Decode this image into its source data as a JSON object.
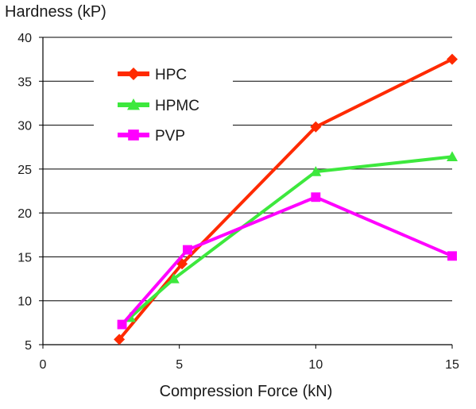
{
  "chart_data": {
    "type": "line",
    "ylabel": "Hardness (kP)",
    "xlabel": "Compression Force (kN)",
    "xlim": [
      0,
      15
    ],
    "ylim": [
      5,
      40
    ],
    "xticks": [
      0,
      5,
      10,
      15
    ],
    "yticks": [
      5,
      10,
      15,
      20,
      25,
      30,
      35,
      40
    ],
    "grid": "horizontal",
    "legend_position": "top-left",
    "series": [
      {
        "name": "HPC",
        "color": "#ff2a00",
        "marker": "diamond",
        "points": [
          [
            2.8,
            5.6
          ],
          [
            5.1,
            14.2
          ],
          [
            10.0,
            29.8
          ],
          [
            15.0,
            37.5
          ]
        ]
      },
      {
        "name": "HPMC",
        "color": "#3de83d",
        "marker": "triangle",
        "points": [
          [
            3.2,
            8.1
          ],
          [
            4.8,
            12.5
          ],
          [
            10.0,
            24.7
          ],
          [
            15.0,
            26.4
          ]
        ]
      },
      {
        "name": "PVP",
        "color": "#ff00ff",
        "marker": "square",
        "points": [
          [
            2.9,
            7.3
          ],
          [
            5.3,
            15.8
          ],
          [
            10.0,
            21.8
          ],
          [
            15.0,
            15.1
          ]
        ]
      }
    ]
  }
}
